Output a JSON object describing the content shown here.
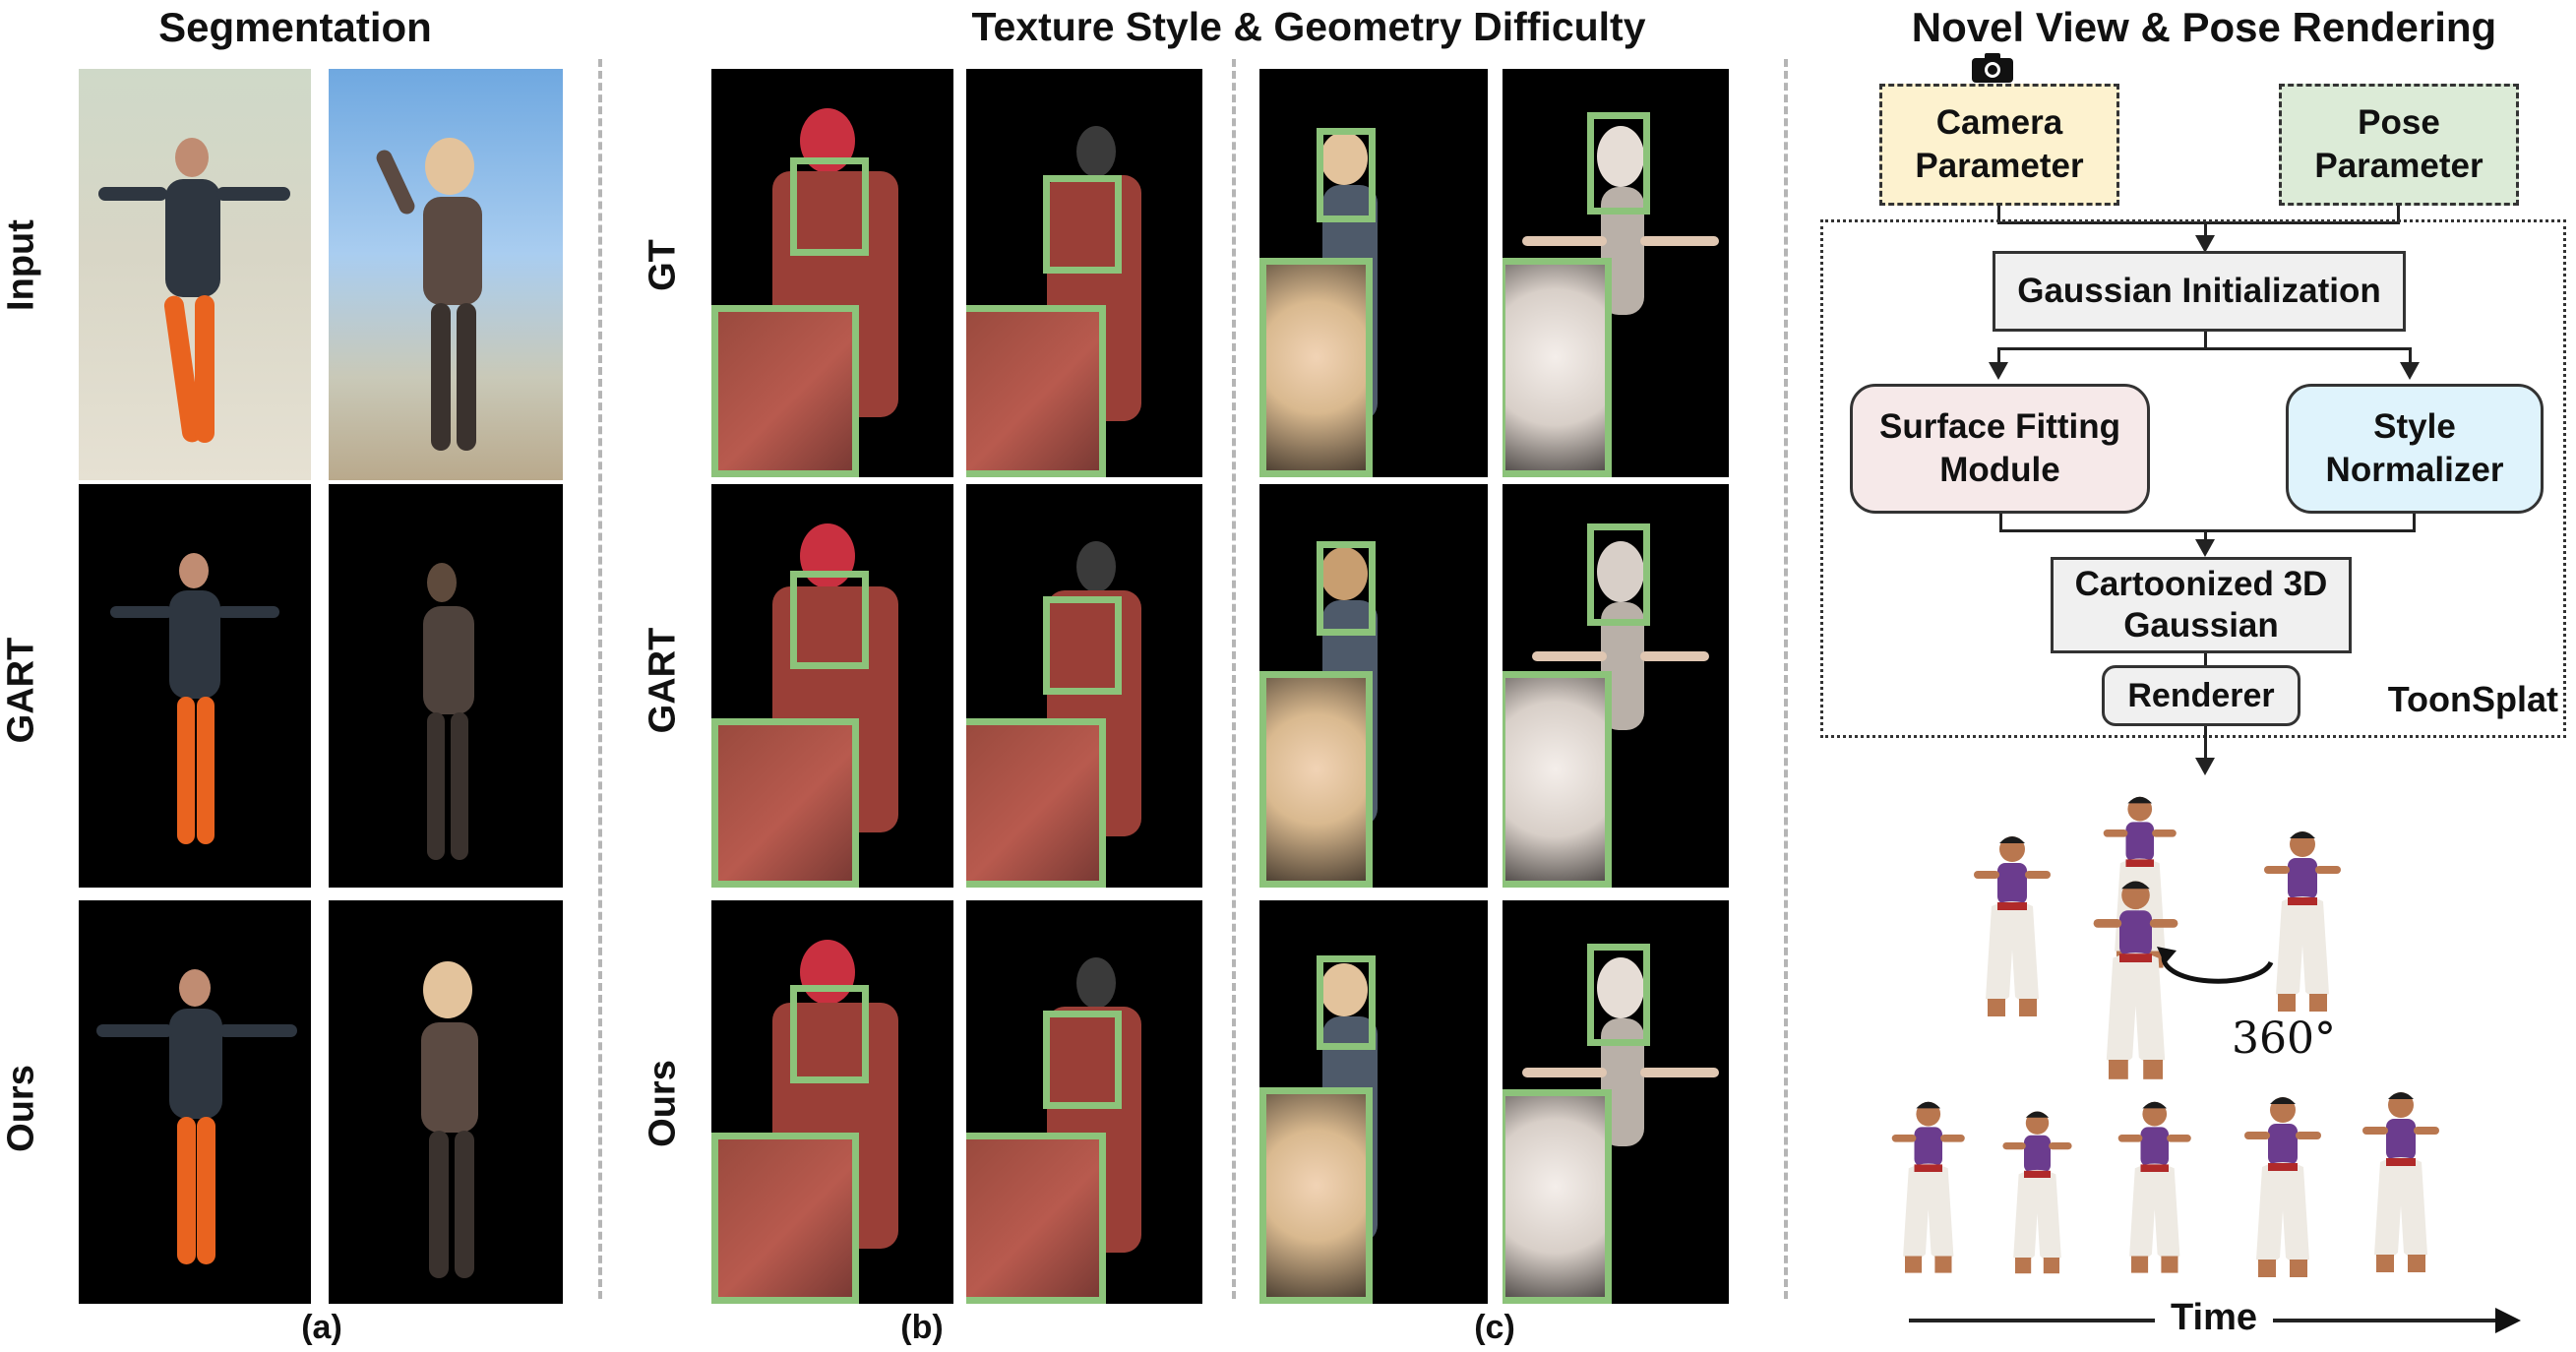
{
  "sections": {
    "segmentation": "Segmentation",
    "texture": "Texture Style & Geometry Difficulty",
    "novel": "Novel View & Pose Rendering"
  },
  "row_labels": {
    "seg": [
      "Input",
      "GART",
      "Ours"
    ],
    "tex": [
      "GT",
      "GART",
      "Ours"
    ]
  },
  "panel_labels": {
    "a": "(a)",
    "b": "(b)",
    "c": "(c)"
  },
  "pipeline": {
    "camera": "Camera Parameter",
    "pose": "Pose Parameter",
    "gaussian_init": "Gaussian Initialization",
    "surface": "Surface Fitting Module",
    "style": "Style Normalizer",
    "cartoon": "Cartoonized 3D Gaussian",
    "renderer": "Renderer",
    "frame_label": "ToonSplat",
    "camera_icon": "camera-icon"
  },
  "rendering": {
    "rotation": "360°",
    "time": "Time"
  },
  "colors": {
    "zoom_box": "#8cc37a",
    "camera_fill": "#fdf2cf",
    "pose_fill": "#dcebd7",
    "surface_fill": "#f6e9e9",
    "style_fill": "#dff3fc",
    "grey_fill": "#f0f0f0"
  }
}
